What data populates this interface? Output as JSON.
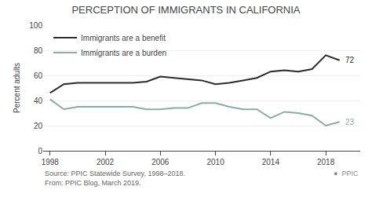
{
  "chart_data": {
    "type": "line",
    "title": "PERCEPTION OF IMMIGRANTS IN CALIFORNIA",
    "ylabel": "Percent adults",
    "x": [
      1998,
      1999,
      2000,
      2001,
      2002,
      2003,
      2004,
      2005,
      2006,
      2007,
      2008,
      2009,
      2010,
      2011,
      2012,
      2013,
      2014,
      2015,
      2016,
      2017,
      2018,
      2019
    ],
    "series": [
      {
        "name": "Immigrants are a benefit",
        "color": "#2b2b2b",
        "values": [
          46,
          53,
          54,
          54,
          54,
          54,
          54,
          55,
          59,
          58,
          57,
          56,
          53,
          54,
          56,
          58,
          63,
          64,
          63,
          65,
          76,
          72
        ]
      },
      {
        "name": "Immigrants are a burden",
        "color": "#8bada0",
        "values": [
          41,
          33,
          35,
          35,
          35,
          35,
          35,
          33,
          33,
          34,
          34,
          38,
          38,
          35,
          33,
          33,
          26,
          31,
          30,
          28,
          20,
          23
        ]
      }
    ],
    "annotations": [
      {
        "text": "72",
        "x": 2019,
        "y": 72
      },
      {
        "text": "23",
        "x": 2019,
        "y": 23
      }
    ],
    "source": "Source: PPIC Statewide Survey, 1998–2018.\nFrom: PPIC Blog, March 2019.",
    "credit": "●  PPIC",
    "xlim": [
      1997.5,
      2020.5
    ],
    "xticks": [
      1998,
      2002,
      2006,
      2010,
      2014,
      2018
    ],
    "ylim": [
      0,
      100
    ],
    "yticks": [
      0,
      20,
      40,
      60,
      80,
      100
    ],
    "grid": true,
    "legend": "upper left"
  }
}
